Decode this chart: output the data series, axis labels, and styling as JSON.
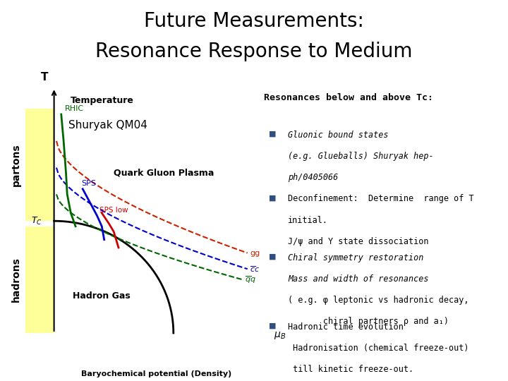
{
  "title_line1": "Future Measurements:",
  "title_line2": "Resonance Response to Medium",
  "title_fontsize": 20,
  "title_color": "#000000",
  "bg_color": "#ffffff",
  "red_bar_color": "#cc0000",
  "left_panel_bg": "#ffff99",
  "right_header": "Resonances below and above Tc:",
  "bullet1_line1": "Gluonic bound states",
  "bullet1_line2": "(e.g. Glueballs) Shuryak hep-",
  "bullet1_line3": "ph/0405066",
  "bullet2_line1": "Deconfinement:  Determine  range of T",
  "bullet2_line2": "initial.",
  "bullet2_line3": "J/ψ and Υ state dissociation",
  "bullet3_line1": "Chiral symmetry restoration",
  "bullet3_line2": "Mass and width of resonances",
  "bullet3_line3": "( e.g. φ leptonic vs hadronic decay,",
  "bullet3_line4": "       chiral partners ρ and a₁)",
  "bullet4_line1": "Hadronic time evolution",
  "bullet4_line2": " Hadronisation (chemical freeze-out)",
  "bullet4_line3": " till kinetic freeze-out.",
  "bullet_color": "#2f4f7f",
  "text_fontsize": 8.5,
  "header_fontsize": 9.5
}
